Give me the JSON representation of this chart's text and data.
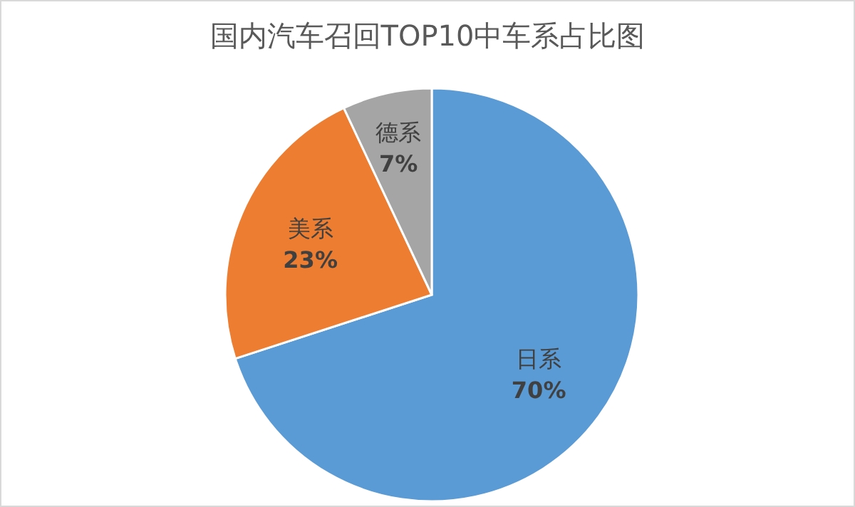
{
  "chart_data": {
    "type": "pie",
    "title": "国内汽车召回TOP10中车系占比图",
    "categories": [
      "日系",
      "美系",
      "德系"
    ],
    "values": [
      70,
      23,
      7
    ],
    "colors": [
      "#5b9bd5",
      "#ed7d31",
      "#a5a5a5"
    ],
    "value_labels": [
      "70%",
      "23%",
      "7%"
    ]
  }
}
